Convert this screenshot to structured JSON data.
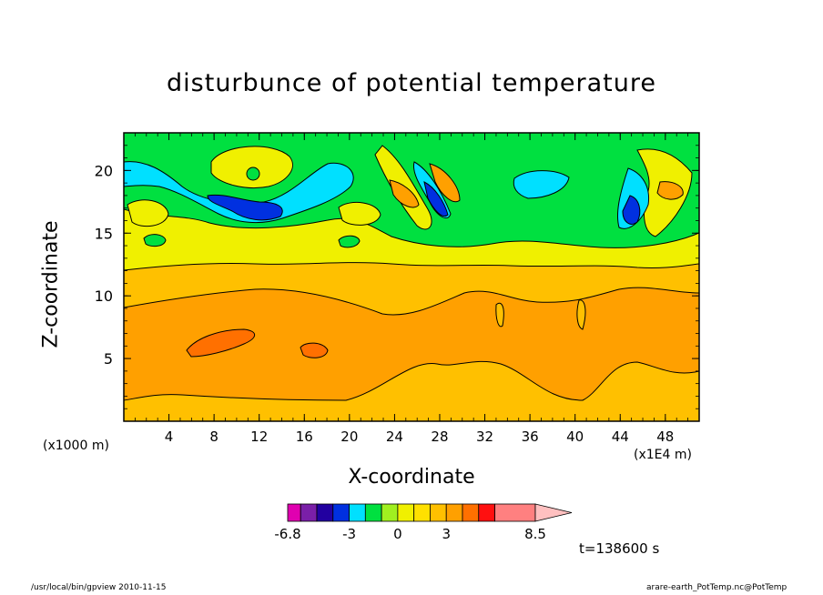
{
  "chart_data": {
    "type": "heatmap",
    "title": "disturbunce of potential temperature",
    "xlabel": "X-coordinate",
    "ylabel": "Z-coordinate",
    "x_unit_left": "(x1000 m)",
    "x_unit_right": "(x1E4 m)",
    "xlim": [
      0,
      51
    ],
    "ylim": [
      0,
      23
    ],
    "x_ticks": [
      "4",
      "8",
      "12",
      "16",
      "20",
      "24",
      "28",
      "32",
      "36",
      "40",
      "44",
      "48"
    ],
    "y_ticks": [
      "5",
      "10",
      "15",
      "20"
    ],
    "colorbar": {
      "levels": [
        -6.8,
        -6,
        -5,
        -4,
        -3,
        -2,
        -1,
        0,
        1,
        2,
        3,
        4,
        5,
        6,
        8.5
      ],
      "tick_labels": [
        "-6.8",
        "-3",
        "0",
        "3",
        "8.5"
      ],
      "colors": [
        "#e000b0",
        "#7a1fa8",
        "#2200a0",
        "#0030e0",
        "#00e0ff",
        "#00e040",
        "#a0f020",
        "#f0f000",
        "#ffe000",
        "#ffc000",
        "#ffa000",
        "#ff7000",
        "#ff1010",
        "#ff8080",
        "#ffc0c0"
      ]
    },
    "time_label": "t=138600 s"
  },
  "footer": {
    "left": "/usr/local/bin/gpview  2010-11-15",
    "right": "arare-earth_PotTemp.nc@PotTemp"
  }
}
